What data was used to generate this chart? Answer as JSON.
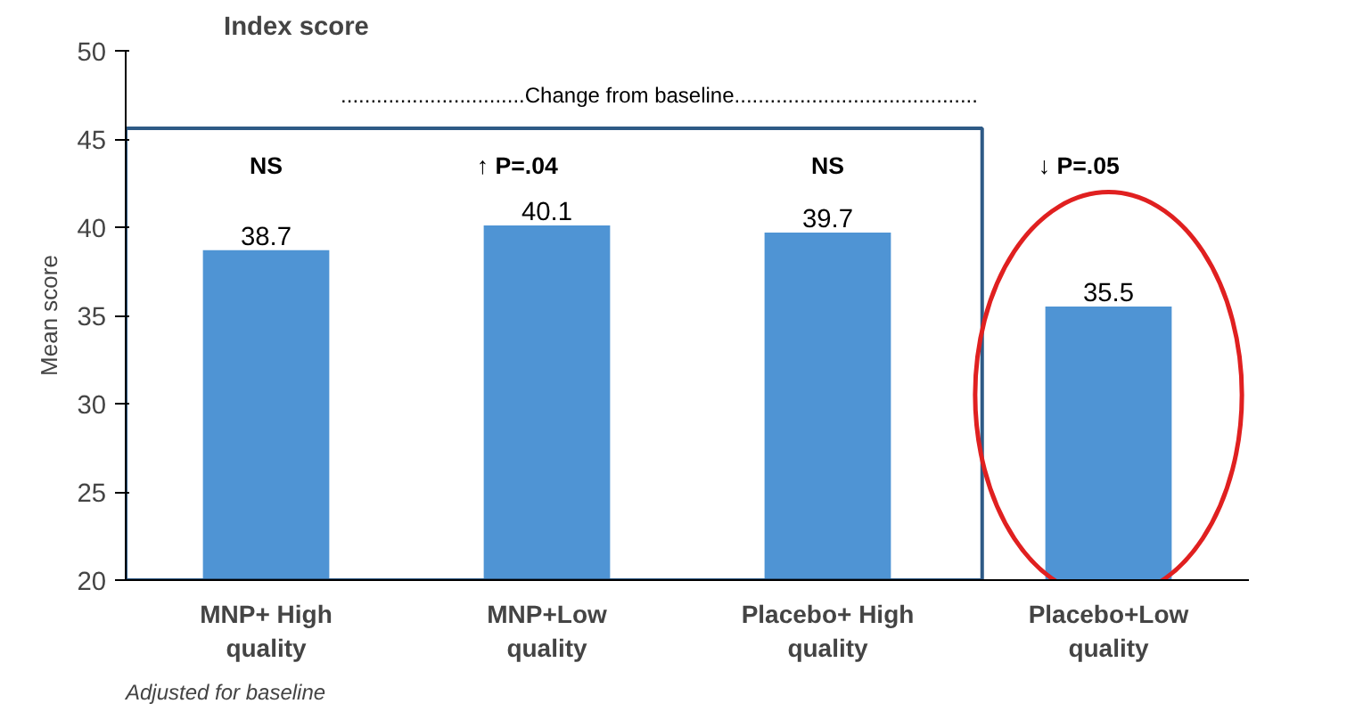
{
  "chart_data": {
    "type": "bar",
    "title": "Index score",
    "ylabel": "Mean score",
    "categories": [
      "MNP+ High quality",
      "MNP+Low quality",
      "Placebo+ High quality",
      "Placebo+Low quality"
    ],
    "values": [
      38.7,
      40.1,
      39.7,
      35.5
    ],
    "color": "#4f94d4",
    "data_labels": true,
    "ylim": [
      20,
      50
    ],
    "yticks": [
      20,
      25,
      30,
      35,
      40,
      45,
      50
    ],
    "grid": false,
    "annotations": [
      "NS",
      "↑ P=.04",
      "NS",
      "↓ P=.05",
      "...............................Change from baseline.........................................",
      "Adjusted for baseline"
    ]
  }
}
